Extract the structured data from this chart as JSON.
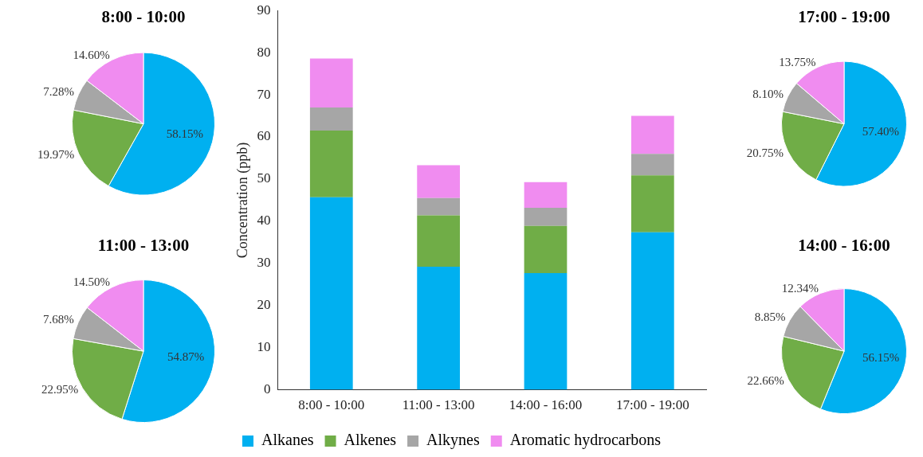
{
  "chart_data": [
    {
      "type": "pie",
      "title": "8:00 - 10:00",
      "categories": [
        null,
        null,
        null,
        null
      ],
      "values": [
        58.15,
        19.97,
        7.28,
        14.6
      ],
      "colors": [
        "#00b0f0",
        "#70ad47",
        "#a6a6a6",
        "#f08cf0"
      ],
      "value_labels": [
        "58.15%",
        "19.97%",
        "7.28%",
        "14.60%"
      ],
      "legend": false
    },
    {
      "type": "bar",
      "stacked": true,
      "categories": [
        "8:00 - 10:00",
        "11:00 - 13:00",
        "14:00 - 16:00",
        "17:00 - 19:00"
      ],
      "ylabel": "Concentration (ppb)",
      "ylim": [
        0,
        90
      ],
      "yticks": [
        0,
        10,
        20,
        30,
        40,
        50,
        60,
        70,
        80,
        90
      ],
      "grid": false,
      "legend": "bottom",
      "series": [
        {
          "name": "Alkanes",
          "color": "#00b0f0",
          "values": [
            45.7,
            29.2,
            27.7,
            37.4
          ]
        },
        {
          "name": "Alkenes",
          "color": "#70ad47",
          "values": [
            15.8,
            12.2,
            11.2,
            13.5
          ]
        },
        {
          "name": "Alkynes",
          "color": "#a6a6a6",
          "values": [
            5.5,
            4.1,
            4.3,
            5.1
          ]
        },
        {
          "name": "Aromatic hydrocarbons",
          "color": "#f08cf0",
          "values": [
            11.6,
            7.8,
            6.1,
            9.0
          ]
        }
      ]
    },
    {
      "type": "pie",
      "title": "17:00 - 19:00",
      "categories": [
        null,
        null,
        null,
        null
      ],
      "values": [
        57.4,
        20.75,
        8.1,
        13.75
      ],
      "colors": [
        "#00b0f0",
        "#70ad47",
        "#a6a6a6",
        "#f08cf0"
      ],
      "value_labels": [
        "57.40%",
        "20.75%",
        "8.10%",
        "13.75%"
      ],
      "legend": false
    },
    {
      "type": "pie",
      "title": "11:00 - 13:00",
      "categories": [
        null,
        null,
        null,
        null
      ],
      "values": [
        54.87,
        22.95,
        7.68,
        14.5
      ],
      "colors": [
        "#00b0f0",
        "#70ad47",
        "#a6a6a6",
        "#f08cf0"
      ],
      "value_labels": [
        "54.87%",
        "22.95%",
        "7.68%",
        "14.50%"
      ],
      "legend": false
    },
    {
      "type": "pie",
      "title": "14:00 - 16:00",
      "categories": [
        null,
        null,
        null,
        null
      ],
      "values": [
        56.15,
        22.66,
        8.85,
        12.34
      ],
      "colors": [
        "#00b0f0",
        "#70ad47",
        "#a6a6a6",
        "#f08cf0"
      ],
      "value_labels": [
        "56.15%",
        "22.66%",
        "8.85%",
        "12.34%"
      ],
      "legend": false
    }
  ]
}
